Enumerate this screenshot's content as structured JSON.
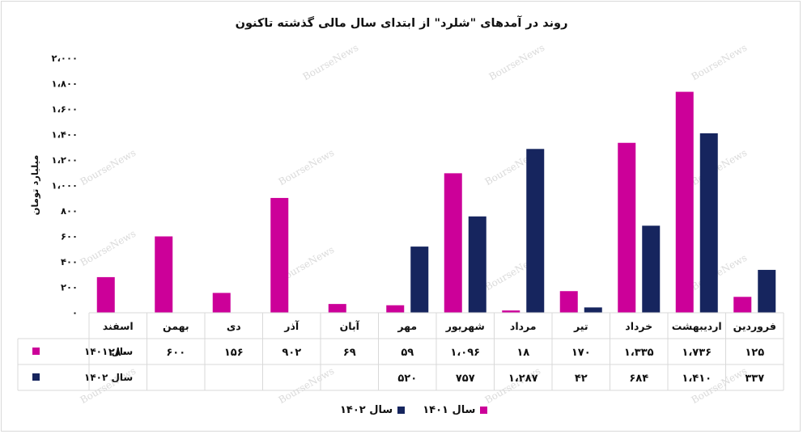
{
  "title": "روند در آمدهای \"شلرد\" از ابتدای سال مالی گذشته تاکنون",
  "watermark": "BourseNews",
  "colors": {
    "s1401": "#cc0099",
    "s1402": "#16255e",
    "grid": "#d9d9d9",
    "axis_text": "#111111"
  },
  "chart_data": {
    "type": "bar",
    "title": "روند در آمدهای \"شلرد\" از ابتدای سال مالی گذشته تاکنون",
    "ylabel": "میلیارد تومان",
    "xlabel": "",
    "ylim": [
      0,
      2000
    ],
    "yticks": [
      0,
      200,
      400,
      600,
      800,
      1000,
      1200,
      1400,
      1600,
      1800,
      2000
    ],
    "ytick_labels": [
      "۰",
      "۲۰۰",
      "۴۰۰",
      "۶۰۰",
      "۸۰۰",
      "۱،۰۰۰",
      "۱،۲۰۰",
      "۱،۴۰۰",
      "۱،۶۰۰",
      "۱،۸۰۰",
      "۲،۰۰۰"
    ],
    "categories": [
      "فروردین",
      "اردیبهشت",
      "خرداد",
      "تیر",
      "مرداد",
      "شهریور",
      "مهر",
      "آبان",
      "آذر",
      "دی",
      "بهمن",
      "اسفند"
    ],
    "grid": false,
    "legend_position": "bottom",
    "data_table": true,
    "series": [
      {
        "name": "سال ۱۴۰۱",
        "color": "#cc0099",
        "values": [
          125,
          1736,
          1335,
          170,
          18,
          1096,
          59,
          69,
          902,
          156,
          600,
          280
        ],
        "labels": [
          "۱۲۵",
          "۱،۷۳۶",
          "۱،۳۳۵",
          "۱۷۰",
          "۱۸",
          "۱،۰۹۶",
          "۵۹",
          "۶۹",
          "۹۰۲",
          "۱۵۶",
          "۶۰۰",
          "۲۸۰"
        ]
      },
      {
        "name": "سال ۱۴۰۲",
        "color": "#16255e",
        "values": [
          337,
          1410,
          684,
          42,
          1287,
          757,
          520,
          null,
          null,
          null,
          null,
          null
        ],
        "labels": [
          "۳۳۷",
          "۱،۴۱۰",
          "۶۸۴",
          "۴۲",
          "۱،۲۸۷",
          "۷۵۷",
          "۵۲۰",
          "",
          "",
          "",
          "",
          ""
        ]
      }
    ]
  }
}
